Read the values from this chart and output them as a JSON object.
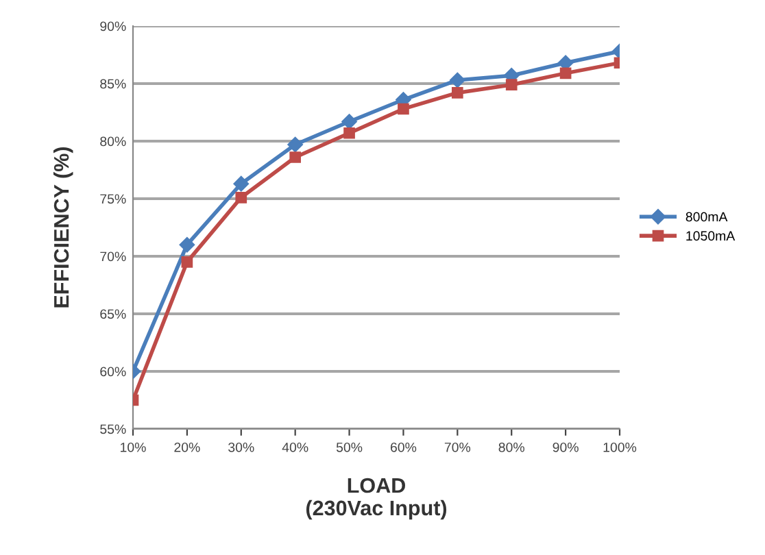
{
  "chart_data": {
    "type": "line",
    "xlabel": "LOAD\n(230Vac Input)",
    "ylabel": "EFFICIENCY (%)",
    "categories": [
      "10%",
      "20%",
      "30%",
      "40%",
      "50%",
      "60%",
      "70%",
      "80%",
      "90%",
      "100%"
    ],
    "series": [
      {
        "name": "800mA",
        "color": "#4a7ebb",
        "marker": "diamond",
        "values": [
          60.0,
          71.0,
          76.3,
          79.7,
          81.7,
          83.6,
          85.3,
          85.7,
          86.8,
          87.8
        ]
      },
      {
        "name": "1050mA",
        "color": "#be4b48",
        "marker": "square",
        "values": [
          57.5,
          69.5,
          75.1,
          78.6,
          80.7,
          82.8,
          84.2,
          84.9,
          85.9,
          86.8
        ]
      }
    ],
    "ylim": [
      55,
      90
    ],
    "yticks": [
      {
        "value": 55,
        "label": "55%"
      },
      {
        "value": 60,
        "label": "60%"
      },
      {
        "value": 65,
        "label": "65%"
      },
      {
        "value": 70,
        "label": "70%"
      },
      {
        "value": 75,
        "label": "75%"
      },
      {
        "value": 80,
        "label": "80%"
      },
      {
        "value": 85,
        "label": "85%"
      },
      {
        "value": 90,
        "label": "90%"
      }
    ],
    "grid": "y",
    "legend": "right",
    "line_style": "solid"
  }
}
